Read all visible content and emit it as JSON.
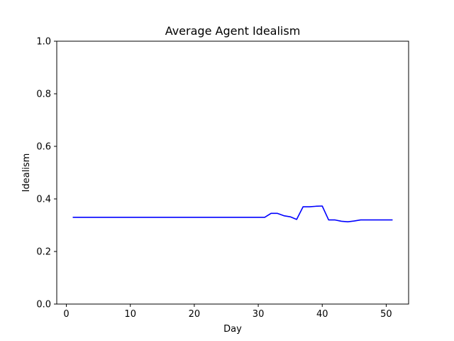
{
  "chart_data": {
    "type": "line",
    "title": "Average Agent Idealism",
    "xlabel": "Day",
    "ylabel": "Idealism",
    "xlim": [
      -1.5,
      53.5
    ],
    "ylim": [
      0.0,
      1.0
    ],
    "xticks": [
      0,
      10,
      20,
      30,
      40,
      50
    ],
    "xtick_labels": [
      "0",
      "10",
      "20",
      "30",
      "40",
      "50"
    ],
    "yticks": [
      0.0,
      0.2,
      0.4,
      0.6,
      0.8,
      1.0
    ],
    "ytick_labels": [
      "0.0",
      "0.2",
      "0.4",
      "0.6",
      "0.8",
      "1.0"
    ],
    "grid": false,
    "series": [
      {
        "color": "#0000ff",
        "x": [
          1,
          2,
          3,
          4,
          5,
          6,
          7,
          8,
          9,
          10,
          11,
          12,
          13,
          14,
          15,
          16,
          17,
          18,
          19,
          20,
          21,
          22,
          23,
          24,
          25,
          26,
          27,
          28,
          29,
          30,
          31,
          32,
          33,
          34,
          35,
          36,
          37,
          38,
          39,
          40,
          41,
          42,
          43,
          44,
          45,
          46,
          47,
          48,
          49,
          50,
          51
        ],
        "y": [
          0.33,
          0.33,
          0.33,
          0.33,
          0.33,
          0.33,
          0.33,
          0.33,
          0.33,
          0.33,
          0.33,
          0.33,
          0.33,
          0.33,
          0.33,
          0.33,
          0.33,
          0.33,
          0.33,
          0.33,
          0.33,
          0.33,
          0.33,
          0.33,
          0.33,
          0.33,
          0.33,
          0.33,
          0.33,
          0.33,
          0.33,
          0.345,
          0.345,
          0.336,
          0.332,
          0.322,
          0.37,
          0.37,
          0.372,
          0.373,
          0.32,
          0.32,
          0.315,
          0.313,
          0.316,
          0.32,
          0.32,
          0.32,
          0.32,
          0.32,
          0.32
        ]
      }
    ]
  }
}
